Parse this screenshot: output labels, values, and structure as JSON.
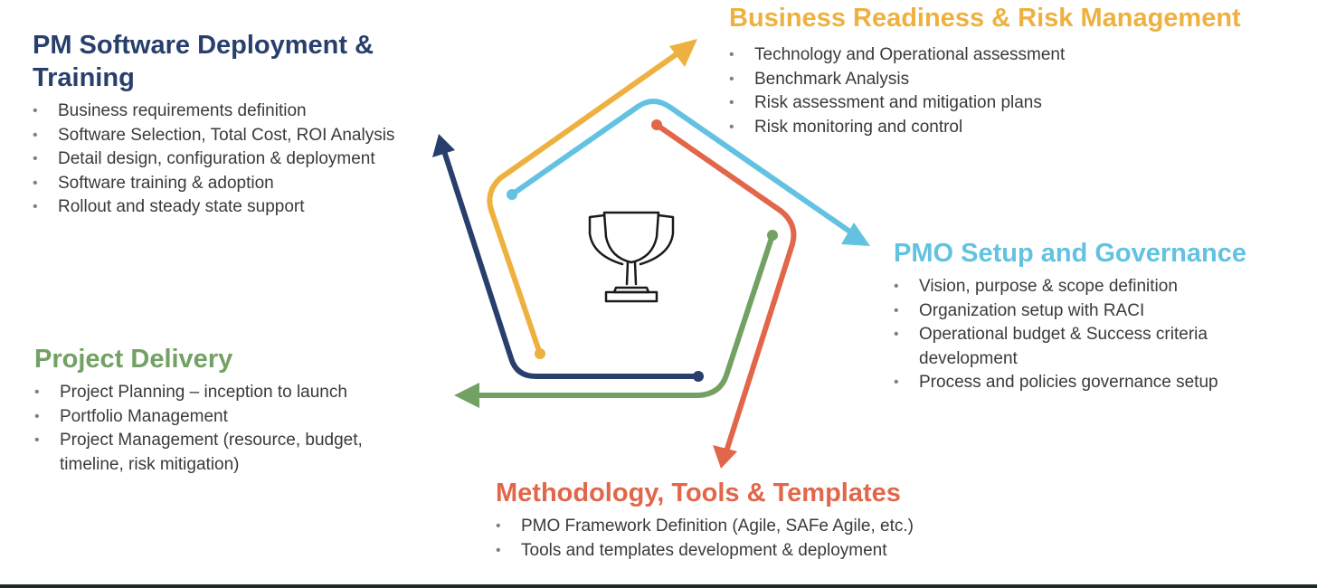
{
  "colors": {
    "navy": "#283f6d",
    "orange": "#eeb13f",
    "blue": "#63c2e1",
    "red": "#e1664a",
    "green": "#73a164"
  },
  "center_icon": "trophy-icon",
  "sections": {
    "pm_software": {
      "title": "PM Software Deployment & Training",
      "color": "#283f6d",
      "items": [
        "Business requirements definition",
        "Software Selection, Total Cost, ROI Analysis",
        "Detail design, configuration & deployment",
        "Software training & adoption",
        "Rollout and  steady state support"
      ]
    },
    "business_readiness": {
      "title": "Business Readiness & Risk Management",
      "color": "#eeb13f",
      "items": [
        "Technology and Operational assessment",
        "Benchmark Analysis",
        "Risk assessment and mitigation plans",
        "Risk monitoring and control"
      ]
    },
    "pmo_setup": {
      "title": "PMO Setup and Governance",
      "color": "#63c2e1",
      "items": [
        "Vision, purpose & scope definition",
        "Organization setup with RACI",
        "Operational budget & Success criteria development",
        "Process and policies governance setup"
      ]
    },
    "project_delivery": {
      "title": "Project Delivery",
      "color": "#73a164",
      "items": [
        "Project Planning – inception to launch",
        "Portfolio Management",
        "Project Management (resource, budget, timeline, risk mitigation)"
      ]
    },
    "methodology": {
      "title": "Methodology, Tools & Templates",
      "color": "#e1664a",
      "items": [
        "PMO Framework Definition (Agile, SAFe Agile, etc.)",
        "Tools and templates development & deployment"
      ]
    }
  }
}
